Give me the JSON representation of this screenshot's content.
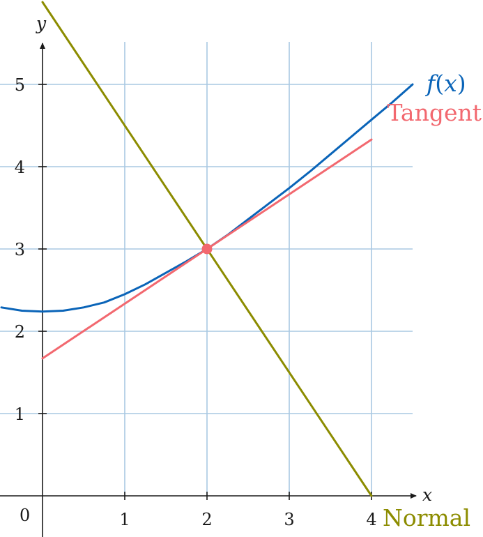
{
  "chart_data": {
    "type": "line",
    "xlabel": "x",
    "ylabel": "y",
    "origin_label": "0",
    "xlim": [
      -0.5,
      4.6
    ],
    "ylim": [
      -0.5,
      5.8
    ],
    "x_ticks": [
      1,
      2,
      3,
      4
    ],
    "y_ticks": [
      1,
      2,
      3,
      4,
      5
    ],
    "grid": true,
    "point_of_tangency": {
      "x": 2,
      "y": 3
    },
    "series": [
      {
        "name": "f(x)",
        "color": "#0a64b8",
        "x": [
          -0.5,
          -0.25,
          0,
          0.25,
          0.5,
          0.75,
          1,
          1.25,
          1.5,
          1.75,
          2,
          2.25,
          2.5,
          2.75,
          3,
          3.25,
          3.5,
          3.75,
          4,
          4.25,
          4.5
        ],
        "y": [
          2.29,
          2.25,
          2.24,
          2.25,
          2.29,
          2.35,
          2.45,
          2.57,
          2.71,
          2.85,
          3.0,
          3.17,
          3.36,
          3.55,
          3.74,
          3.94,
          4.15,
          4.36,
          4.57,
          4.78,
          5.0
        ]
      },
      {
        "name": "Tangent",
        "color": "#f2686f",
        "x": [
          0,
          4
        ],
        "y": [
          1.67,
          4.33
        ]
      },
      {
        "name": "Normal",
        "color": "#8c8c00",
        "x": [
          0,
          4
        ],
        "y": [
          6.0,
          0
        ]
      }
    ]
  }
}
